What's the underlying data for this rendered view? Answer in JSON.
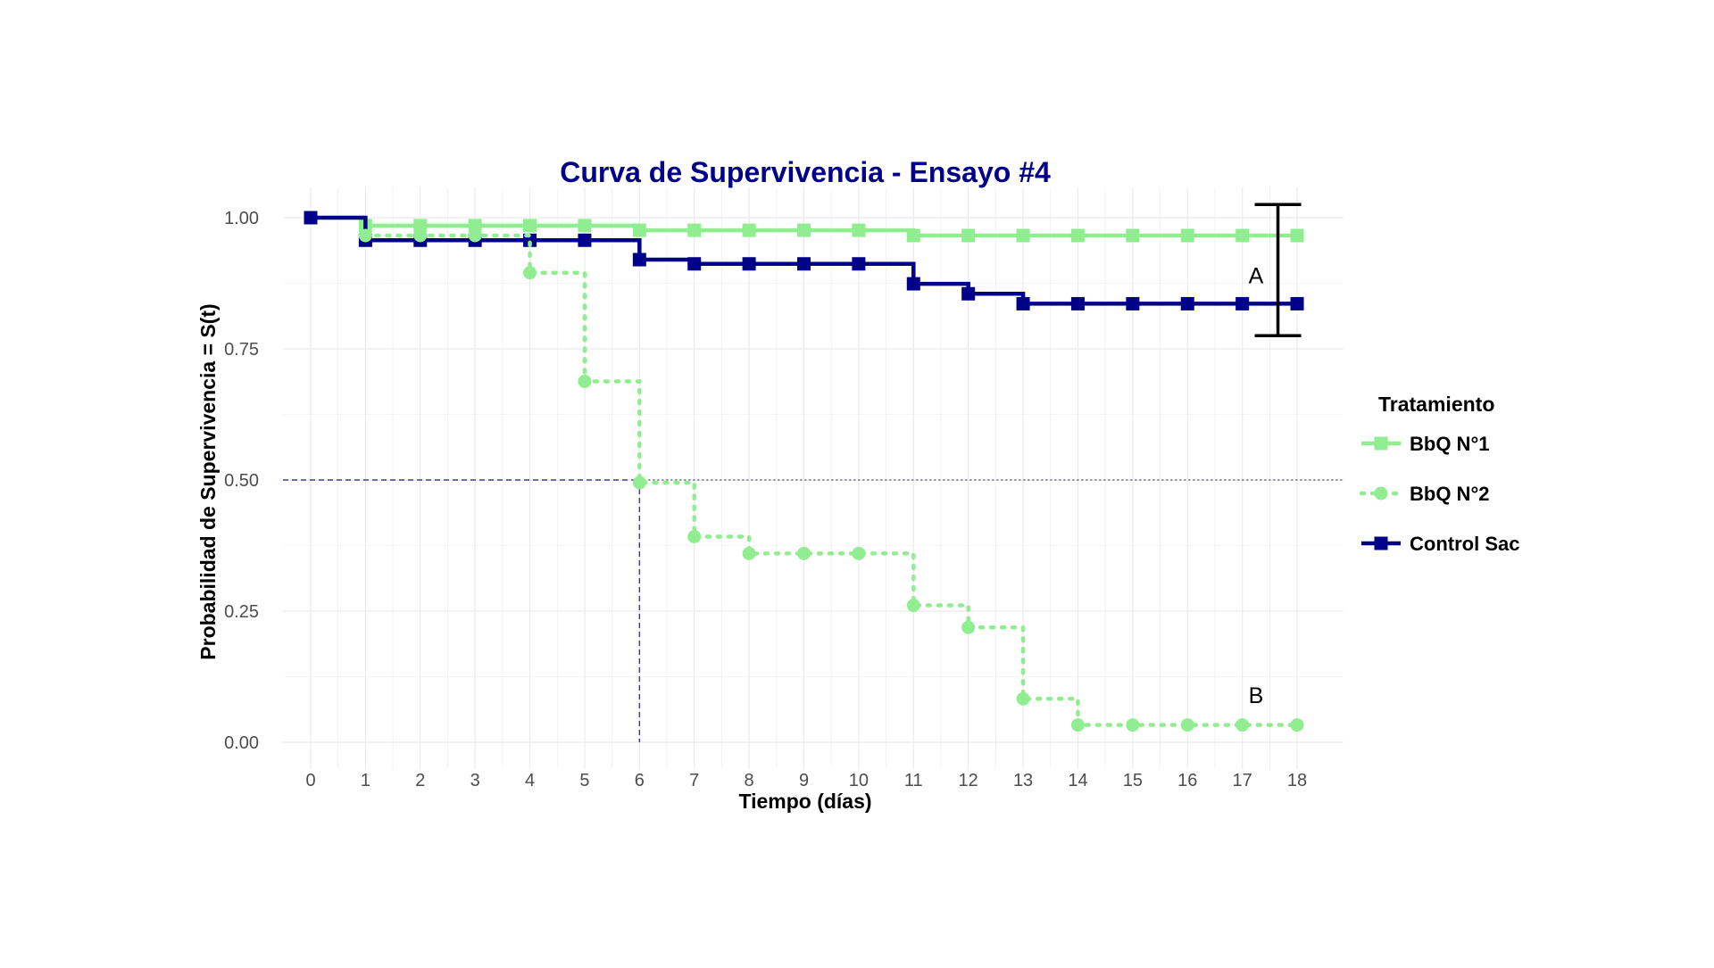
{
  "chart_data": {
    "type": "line",
    "title": "Curva de Supervivencia - Ensayo #4",
    "xlabel": "Tiempo (días)",
    "ylabel": "Probabilidad de Supervivencia = S(t)",
    "xlim": [
      0,
      18
    ],
    "ylim": [
      0,
      1
    ],
    "x_ticks": [
      "0",
      "1",
      "2",
      "3",
      "4",
      "5",
      "6",
      "7",
      "8",
      "9",
      "10",
      "11",
      "12",
      "13",
      "14",
      "15",
      "16",
      "17",
      "18"
    ],
    "y_ticks": [
      "0.00",
      "0.25",
      "0.50",
      "0.75",
      "1.00"
    ],
    "grid": true,
    "legend_title": "Tratamiento",
    "legend_position": "right",
    "series": [
      {
        "name": "BbQ N°1",
        "color": "#90EE90",
        "line_style": "solid",
        "marker": "square",
        "x": [
          0,
          1,
          2,
          3,
          4,
          5,
          6,
          7,
          8,
          9,
          10,
          11,
          12,
          13,
          14,
          15,
          16,
          17,
          18
        ],
        "y": [
          1.0,
          0.985,
          0.985,
          0.985,
          0.985,
          0.985,
          0.976,
          0.976,
          0.976,
          0.976,
          0.976,
          0.966,
          0.966,
          0.966,
          0.966,
          0.966,
          0.966,
          0.966,
          0.966
        ]
      },
      {
        "name": "BbQ N°2",
        "color": "#90EE90",
        "line_style": "dotted",
        "marker": "circle",
        "x": [
          1,
          2,
          3,
          4,
          5,
          6,
          7,
          8,
          9,
          10,
          11,
          12,
          13,
          14,
          15,
          16,
          17,
          18
        ],
        "y": [
          0.966,
          0.966,
          0.966,
          0.895,
          0.688,
          0.495,
          0.392,
          0.36,
          0.36,
          0.36,
          0.261,
          0.219,
          0.083,
          0.033,
          0.033,
          0.033,
          0.033,
          0.033
        ]
      },
      {
        "name": "Control Sac",
        "color": "#00008B",
        "line_style": "solid",
        "marker": "square",
        "x": [
          0,
          1,
          2,
          3,
          4,
          5,
          6,
          7,
          8,
          9,
          10,
          11,
          12,
          13,
          14,
          15,
          16,
          17,
          18
        ],
        "y": [
          1.0,
          0.957,
          0.957,
          0.957,
          0.957,
          0.957,
          0.92,
          0.912,
          0.912,
          0.912,
          0.912,
          0.874,
          0.855,
          0.836,
          0.836,
          0.836,
          0.836,
          0.836,
          0.836
        ]
      }
    ],
    "reference_lines": {
      "median_y": 0.5,
      "median_x": 6
    },
    "annotations": [
      {
        "text": "A",
        "x": 17.25,
        "y": 0.89
      },
      {
        "text": "B",
        "x": 17.25,
        "y": 0.09
      }
    ],
    "error_bar": {
      "x": 17.65,
      "y_low": 0.775,
      "y_high": 1.025
    }
  },
  "colors": {
    "title": "#00008B",
    "grid": "#EBEBEB",
    "median_h": "#444466",
    "median_v": "#3c3c8c"
  }
}
